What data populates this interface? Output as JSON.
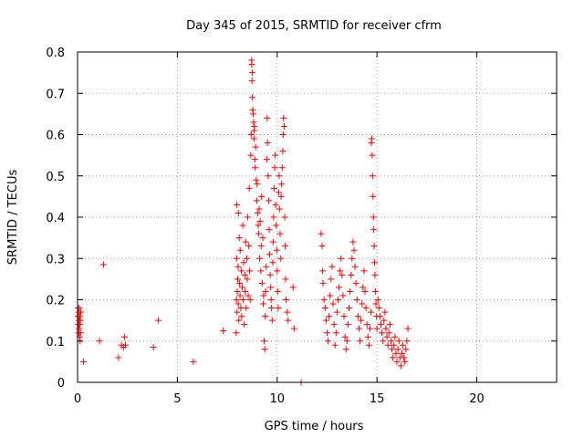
{
  "chart_data": {
    "type": "scatter",
    "title": "Day 345 of 2015, SRMTID for receiver cfrm",
    "xlabel": "GPS time / hours",
    "ylabel": "SRMTID / TECUs",
    "xlim": [
      0,
      24
    ],
    "ylim": [
      0,
      0.8
    ],
    "xticks": [
      0,
      5,
      10,
      15,
      20
    ],
    "yticks": [
      0,
      0.1,
      0.2,
      0.3,
      0.4,
      0.5,
      0.6,
      0.7,
      0.8
    ],
    "grid": true,
    "marker": "+",
    "color": "#ff0000",
    "series": [
      {
        "name": "SRMTID",
        "points": [
          [
            0.02,
            0.18
          ],
          [
            0.03,
            0.16
          ],
          [
            0.04,
            0.14
          ],
          [
            0.05,
            0.12
          ],
          [
            0.06,
            0.17
          ],
          [
            0.07,
            0.15
          ],
          [
            0.08,
            0.13
          ],
          [
            0.09,
            0.18
          ],
          [
            0.1,
            0.11
          ],
          [
            0.11,
            0.16
          ],
          [
            0.12,
            0.14
          ],
          [
            0.13,
            0.1
          ],
          [
            0.14,
            0.15
          ],
          [
            0.15,
            0.12
          ],
          [
            0.16,
            0.17
          ],
          [
            0.3,
            0.05
          ],
          [
            1.1,
            0.1
          ],
          [
            1.3,
            0.285
          ],
          [
            2.05,
            0.06
          ],
          [
            2.2,
            0.09
          ],
          [
            2.3,
            0.085
          ],
          [
            2.35,
            0.11
          ],
          [
            2.4,
            0.09
          ],
          [
            3.8,
            0.085
          ],
          [
            4.05,
            0.15
          ],
          [
            5.8,
            0.05
          ],
          [
            7.3,
            0.125
          ],
          [
            7.95,
            0.12
          ],
          [
            7.96,
            0.2
          ],
          [
            7.97,
            0.3
          ],
          [
            7.98,
            0.43
          ],
          [
            7.99,
            0.17
          ],
          [
            8.0,
            0.22
          ],
          [
            8.02,
            0.25
          ],
          [
            8.04,
            0.28
          ],
          [
            8.05,
            0.19
          ],
          [
            8.06,
            0.41
          ],
          [
            8.08,
            0.15
          ],
          [
            8.1,
            0.35
          ],
          [
            8.12,
            0.24
          ],
          [
            8.14,
            0.21
          ],
          [
            8.15,
            0.32
          ],
          [
            8.18,
            0.18
          ],
          [
            8.2,
            0.27
          ],
          [
            8.22,
            0.16
          ],
          [
            8.25,
            0.23
          ],
          [
            8.28,
            0.38
          ],
          [
            8.3,
            0.2
          ],
          [
            8.32,
            0.29
          ],
          [
            8.35,
            0.14
          ],
          [
            8.38,
            0.26
          ],
          [
            8.4,
            0.22
          ],
          [
            8.42,
            0.34
          ],
          [
            8.45,
            0.18
          ],
          [
            8.48,
            0.3
          ],
          [
            8.5,
            0.25
          ],
          [
            8.52,
            0.4
          ],
          [
            8.55,
            0.21
          ],
          [
            8.58,
            0.33
          ],
          [
            8.6,
            0.47
          ],
          [
            8.62,
            0.27
          ],
          [
            8.65,
            0.2
          ],
          [
            8.68,
            0.55
          ],
          [
            8.7,
            0.6
          ],
          [
            8.72,
            0.78
          ],
          [
            8.73,
            0.77
          ],
          [
            8.74,
            0.73
          ],
          [
            8.75,
            0.75
          ],
          [
            8.76,
            0.69
          ],
          [
            8.78,
            0.66
          ],
          [
            8.8,
            0.65
          ],
          [
            8.82,
            0.63
          ],
          [
            8.84,
            0.59
          ],
          [
            8.85,
            0.61
          ],
          [
            8.86,
            0.62
          ],
          [
            8.88,
            0.54
          ],
          [
            8.9,
            0.52
          ],
          [
            8.92,
            0.57
          ],
          [
            8.95,
            0.49
          ],
          [
            8.98,
            0.44
          ],
          [
            9.0,
            0.48
          ],
          [
            9.02,
            0.41
          ],
          [
            9.05,
            0.38
          ],
          [
            9.08,
            0.36
          ],
          [
            9.1,
            0.42
          ],
          [
            9.12,
            0.3
          ],
          [
            9.15,
            0.39
          ],
          [
            9.18,
            0.27
          ],
          [
            9.2,
            0.33
          ],
          [
            9.22,
            0.45
          ],
          [
            9.25,
            0.24
          ],
          [
            9.28,
            0.35
          ],
          [
            9.3,
            0.19
          ],
          [
            9.32,
            0.21
          ],
          [
            9.35,
            0.1
          ],
          [
            9.38,
            0.08
          ],
          [
            9.4,
            0.16
          ],
          [
            9.42,
            0.22
          ],
          [
            9.45,
            0.28
          ],
          [
            9.48,
            0.54
          ],
          [
            9.5,
            0.64
          ],
          [
            9.52,
            0.58
          ],
          [
            9.55,
            0.5
          ],
          [
            9.58,
            0.44
          ],
          [
            9.6,
            0.37
          ],
          [
            9.62,
            0.31
          ],
          [
            9.65,
            0.26
          ],
          [
            9.68,
            0.23
          ],
          [
            9.7,
            0.2
          ],
          [
            9.72,
            0.18
          ],
          [
            9.75,
            0.15
          ],
          [
            9.78,
            0.29
          ],
          [
            9.8,
            0.34
          ],
          [
            9.82,
            0.4
          ],
          [
            9.85,
            0.47
          ],
          [
            9.88,
            0.52
          ],
          [
            9.9,
            0.55
          ],
          [
            9.92,
            0.43
          ],
          [
            9.95,
            0.38
          ],
          [
            9.98,
            0.32
          ],
          [
            10.0,
            0.27
          ],
          [
            10.02,
            0.22
          ],
          [
            10.05,
            0.18
          ],
          [
            10.08,
            0.46
          ],
          [
            10.1,
            0.5
          ],
          [
            10.12,
            0.42
          ],
          [
            10.15,
            0.36
          ],
          [
            10.18,
            0.3
          ],
          [
            10.2,
            0.45
          ],
          [
            10.22,
            0.48
          ],
          [
            10.25,
            0.52
          ],
          [
            10.28,
            0.56
          ],
          [
            10.3,
            0.6
          ],
          [
            10.32,
            0.64
          ],
          [
            10.35,
            0.62
          ],
          [
            10.38,
            0.4
          ],
          [
            10.4,
            0.33
          ],
          [
            10.42,
            0.25
          ],
          [
            10.45,
            0.2
          ],
          [
            10.5,
            0.17
          ],
          [
            10.55,
            0.15
          ],
          [
            10.8,
            0.23
          ],
          [
            10.85,
            0.13
          ],
          [
            11.2,
            0.0
          ],
          [
            12.2,
            0.36
          ],
          [
            12.25,
            0.33
          ],
          [
            12.28,
            0.27
          ],
          [
            12.3,
            0.24
          ],
          [
            12.35,
            0.2
          ],
          [
            12.4,
            0.18
          ],
          [
            12.45,
            0.15
          ],
          [
            12.5,
            0.12
          ],
          [
            12.55,
            0.1
          ],
          [
            12.6,
            0.16
          ],
          [
            12.65,
            0.21
          ],
          [
            12.7,
            0.25
          ],
          [
            12.75,
            0.28
          ],
          [
            12.8,
            0.19
          ],
          [
            12.85,
            0.14
          ],
          [
            12.9,
            0.09
          ],
          [
            12.95,
            0.12
          ],
          [
            13.0,
            0.17
          ],
          [
            13.05,
            0.2
          ],
          [
            13.1,
            0.23
          ],
          [
            13.15,
            0.27
          ],
          [
            13.2,
            0.3
          ],
          [
            13.25,
            0.26
          ],
          [
            13.3,
            0.21
          ],
          [
            13.35,
            0.16
          ],
          [
            13.4,
            0.11
          ],
          [
            13.45,
            0.08
          ],
          [
            13.5,
            0.1
          ],
          [
            13.55,
            0.14
          ],
          [
            13.6,
            0.18
          ],
          [
            13.65,
            0.22
          ],
          [
            13.7,
            0.26
          ],
          [
            13.75,
            0.3
          ],
          [
            13.8,
            0.34
          ],
          [
            13.85,
            0.32
          ],
          [
            13.9,
            0.28
          ],
          [
            13.95,
            0.24
          ],
          [
            14.0,
            0.2
          ],
          [
            14.05,
            0.16
          ],
          [
            14.1,
            0.13
          ],
          [
            14.15,
            0.1
          ],
          [
            14.2,
            0.15
          ],
          [
            14.25,
            0.19
          ],
          [
            14.3,
            0.23
          ],
          [
            14.35,
            0.27
          ],
          [
            14.4,
            0.22
          ],
          [
            14.45,
            0.18
          ],
          [
            14.5,
            0.14
          ],
          [
            14.55,
            0.11
          ],
          [
            14.6,
            0.09
          ],
          [
            14.65,
            0.13
          ],
          [
            14.7,
            0.17
          ],
          [
            14.72,
            0.58
          ],
          [
            14.74,
            0.59
          ],
          [
            14.76,
            0.55
          ],
          [
            14.78,
            0.5
          ],
          [
            14.8,
            0.45
          ],
          [
            14.82,
            0.4
          ],
          [
            14.84,
            0.37
          ],
          [
            14.86,
            0.33
          ],
          [
            14.88,
            0.29
          ],
          [
            14.9,
            0.26
          ],
          [
            14.92,
            0.22
          ],
          [
            14.95,
            0.19
          ],
          [
            14.98,
            0.16
          ],
          [
            15.0,
            0.13
          ],
          [
            15.05,
            0.2
          ],
          [
            15.1,
            0.18
          ],
          [
            15.15,
            0.16
          ],
          [
            15.2,
            0.14
          ],
          [
            15.25,
            0.12
          ],
          [
            15.3,
            0.1
          ],
          [
            15.35,
            0.15
          ],
          [
            15.4,
            0.17
          ],
          [
            15.45,
            0.13
          ],
          [
            15.5,
            0.11
          ],
          [
            15.55,
            0.09
          ],
          [
            15.6,
            0.12
          ],
          [
            15.65,
            0.14
          ],
          [
            15.7,
            0.1
          ],
          [
            15.75,
            0.08
          ],
          [
            15.8,
            0.06
          ],
          [
            15.85,
            0.09
          ],
          [
            15.9,
            0.11
          ],
          [
            15.95,
            0.07
          ],
          [
            16.0,
            0.05
          ],
          [
            16.05,
            0.08
          ],
          [
            16.1,
            0.1
          ],
          [
            16.15,
            0.06
          ],
          [
            16.2,
            0.04
          ],
          [
            16.25,
            0.07
          ],
          [
            16.3,
            0.09
          ],
          [
            16.35,
            0.06
          ],
          [
            16.4,
            0.05
          ],
          [
            16.45,
            0.08
          ],
          [
            16.5,
            0.1
          ],
          [
            16.55,
            0.13
          ]
        ]
      }
    ]
  }
}
